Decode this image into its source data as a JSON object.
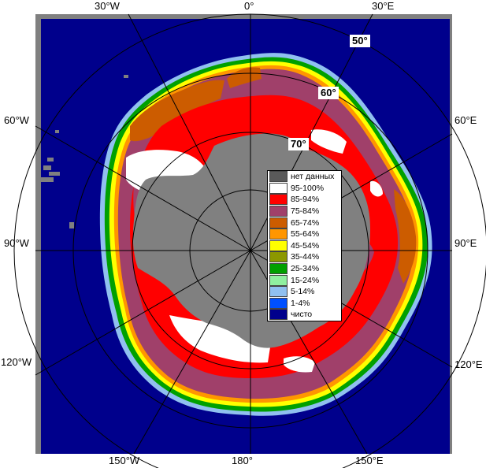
{
  "map": {
    "lon_labels": {
      "top_30w": "30°W",
      "top_0": "0°",
      "top_30e": "30°E",
      "left_60w": "60°W",
      "left_90w": "90°W",
      "left_120w": "120°W",
      "right_60e": "60°E",
      "right_90e": "90°E",
      "right_120e": "120°E",
      "bottom_150w": "150°W",
      "bottom_180": "180°",
      "bottom_150e": "150°E"
    },
    "lat_labels": {
      "lat50": "50°",
      "lat60": "60°",
      "lat70": "70°"
    }
  },
  "legend": {
    "items": [
      {
        "label": "нет данных",
        "color": "#5a5a5a"
      },
      {
        "label": "95-100%",
        "color": "#ffffff"
      },
      {
        "label": "85-94%",
        "color": "#ff0000"
      },
      {
        "label": "75-84%",
        "color": "#a0406a"
      },
      {
        "label": "65-74%",
        "color": "#cc5c00"
      },
      {
        "label": "55-64%",
        "color": "#ff9600"
      },
      {
        "label": "45-54%",
        "color": "#ffff00"
      },
      {
        "label": "35-44%",
        "color": "#8c9800"
      },
      {
        "label": "25-34%",
        "color": "#00a000"
      },
      {
        "label": "15-24%",
        "color": "#90f0a0"
      },
      {
        "label": "5-14%",
        "color": "#90c0f0"
      },
      {
        "label": "1-4%",
        "color": "#0050ff"
      },
      {
        "label": "чисто",
        "color": "#00008c"
      }
    ]
  },
  "colors": {
    "ocean": "#00008c",
    "land": "#808080",
    "frame": "#808080",
    "grid": "#000000"
  }
}
